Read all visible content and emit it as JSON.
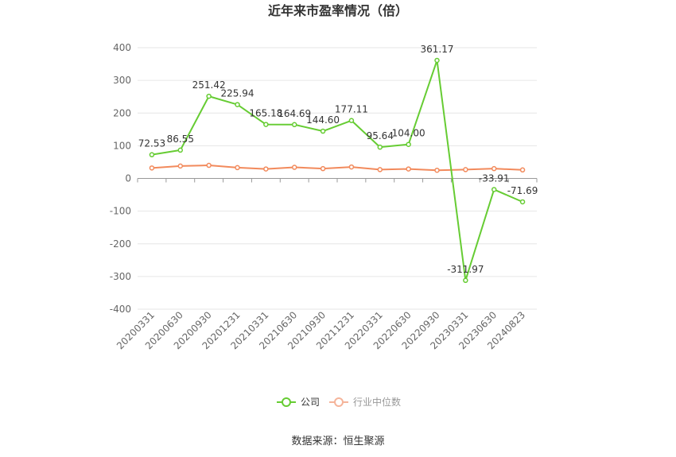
{
  "title": "近年来市盈率情况（倍）",
  "source": "数据来源：恒生聚源",
  "colors": {
    "company": "#66cc33",
    "industry": "#f28a5c",
    "grid": "#e6e6e6",
    "axis": "#999999"
  },
  "chart_data": {
    "type": "line",
    "title": "近年来市盈率情况（倍）",
    "categories": [
      "20200331",
      "20200630",
      "20200930",
      "20201231",
      "20210331",
      "20210630",
      "20210930",
      "20211231",
      "20220331",
      "20220630",
      "20220930",
      "20230331",
      "20230630",
      "20240823"
    ],
    "ylim": [
      -400,
      400
    ],
    "yticks": [
      -400,
      -300,
      -200,
      -100,
      0,
      100,
      200,
      300,
      400
    ],
    "grid": true,
    "legend_position": "bottom",
    "series": [
      {
        "name": "公司",
        "values": [
          72.53,
          86.55,
          251.42,
          225.94,
          165.18,
          164.69,
          144.6,
          177.11,
          95.64,
          104.0,
          361.17,
          -311.97,
          -33.91,
          -71.69
        ],
        "labels": [
          "72.53",
          "86.55",
          "251.42",
          "225.94",
          "165.18",
          "164.69",
          "144.60",
          "177.11",
          "95.64",
          "104.00",
          "361.17",
          "-311.97",
          "-33.91",
          "-71.69"
        ]
      },
      {
        "name": "行业中位数",
        "values": [
          32,
          38,
          40,
          33,
          29,
          34,
          30,
          35,
          27,
          29,
          25,
          27,
          30,
          26
        ]
      }
    ]
  }
}
